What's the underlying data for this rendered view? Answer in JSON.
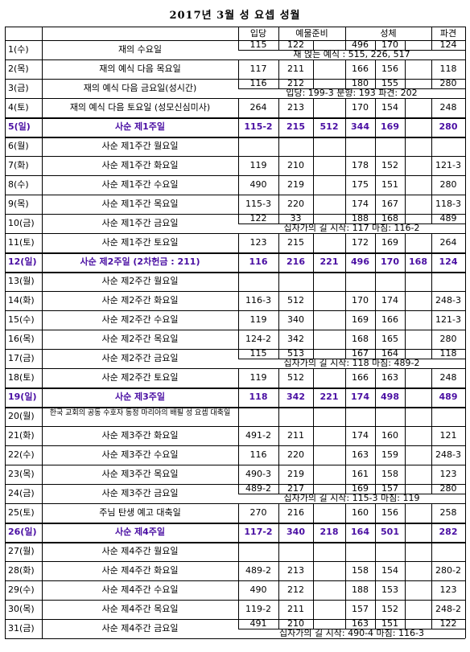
{
  "title": "2017년 3월 성 요셉 성월",
  "headers": {
    "opening": "입당",
    "offertory": "예물준비",
    "communion": "성체",
    "dismissal": "파견"
  },
  "rows": [
    {
      "date": "1(수)",
      "name": "재의 수요일",
      "vals": [
        "115",
        "122",
        "",
        "496",
        "170",
        "",
        "124"
      ],
      "note": "재 얹는 예식 : 515, 226, 517",
      "note_mode": "full"
    },
    {
      "date": "2(목)",
      "name": "재의 예식 다음 목요일",
      "vals": [
        "117",
        "211",
        "",
        "166",
        "156",
        "",
        "118"
      ]
    },
    {
      "date": "3(금)",
      "name": "재의 예식 다음 금요일(성시간)",
      "vals": [
        "116",
        "212",
        "",
        "180",
        "155",
        "",
        "280"
      ],
      "note": "입당: 199-3   분향: 193   파견: 202",
      "note_mode": "full"
    },
    {
      "date": "4(토)",
      "name": "재의 예식 다음 토요일 (성모신심미사)",
      "vals": [
        "264",
        "213",
        "",
        "170",
        "154",
        "",
        "248"
      ]
    },
    {
      "date": "5(일)",
      "name": "사순 제1주일",
      "vals": [
        "115-2",
        "215",
        "512",
        "344",
        "169",
        "",
        "280"
      ],
      "sunday": true
    },
    {
      "date": "6(월)",
      "name": "사순 제1주간 월요일",
      "vals": [
        "",
        "",
        "",
        "",
        "",
        "",
        ""
      ]
    },
    {
      "date": "7(화)",
      "name": "사순 제1주간 화요일",
      "vals": [
        "119",
        "210",
        "",
        "178",
        "152",
        "",
        "121-3"
      ]
    },
    {
      "date": "8(수)",
      "name": "사순 제1주간 수요일",
      "vals": [
        "490",
        "219",
        "",
        "175",
        "151",
        "",
        "280"
      ]
    },
    {
      "date": "9(목)",
      "name": "사순 제1주간 목요일",
      "vals": [
        "115-3",
        "220",
        "",
        "174",
        "167",
        "",
        "118-3"
      ]
    },
    {
      "date": "10(금)",
      "name": "사순 제1주간 금요일",
      "vals": [
        "122",
        "33",
        "",
        "188",
        "168",
        "",
        "489"
      ],
      "note": "십자가의 길 시작: 117        마침: 116-2",
      "note_mode": "inner"
    },
    {
      "date": "11(토)",
      "name": "사순 제1주간 토요일",
      "vals": [
        "123",
        "215",
        "",
        "172",
        "169",
        "",
        "264"
      ]
    },
    {
      "date": "12(일)",
      "name": "사순 제2주일 (2차헌금 : 211)",
      "vals": [
        "116",
        "216",
        "221",
        "496",
        "170",
        "168",
        "124"
      ],
      "sunday": true
    },
    {
      "date": "13(월)",
      "name": "사순 제2주간 월요일",
      "vals": [
        "",
        "",
        "",
        "",
        "",
        "",
        ""
      ]
    },
    {
      "date": "14(화)",
      "name": "사순 제2주간 화요일",
      "vals": [
        "116-3",
        "512",
        "",
        "170",
        "174",
        "",
        "248-3"
      ]
    },
    {
      "date": "15(수)",
      "name": "사순 제2주간 수요일",
      "vals": [
        "119",
        "340",
        "",
        "169",
        "166",
        "",
        "121-3"
      ]
    },
    {
      "date": "16(목)",
      "name": "사순 제2주간 목요일",
      "vals": [
        "124-2",
        "342",
        "",
        "168",
        "165",
        "",
        "280"
      ]
    },
    {
      "date": "17(금)",
      "name": "사순 제2주간 금요일",
      "vals": [
        "115",
        "513",
        "",
        "167",
        "164",
        "",
        "118"
      ],
      "note": "십자가의 길 시작: 118          마침: 489-2",
      "note_mode": "inner"
    },
    {
      "date": "18(토)",
      "name": "사순 제2주간 토요일",
      "vals": [
        "119",
        "512",
        "",
        "166",
        "163",
        "",
        "248"
      ]
    },
    {
      "date": "19(일)",
      "name": "사순 제3주일",
      "vals": [
        "118",
        "342",
        "221",
        "174",
        "498",
        "",
        "489"
      ],
      "sunday": true
    },
    {
      "date": "20(월)",
      "name": "한국 교회의 공동 수호자 동정 마리아의 배필 성 요셉 대축일",
      "vals": [
        "",
        "",
        "",
        "",
        "",
        "",
        ""
      ],
      "small": true
    },
    {
      "date": "21(화)",
      "name": "사순 제3주간 화요일",
      "vals": [
        "491-2",
        "211",
        "",
        "174",
        "160",
        "",
        "121"
      ]
    },
    {
      "date": "22(수)",
      "name": "사순 제3주간 수요일",
      "vals": [
        "116",
        "220",
        "",
        "163",
        "159",
        "",
        "248-3"
      ]
    },
    {
      "date": "23(목)",
      "name": "사순 제3주간 목요일",
      "vals": [
        "490-3",
        "219",
        "",
        "161",
        "158",
        "",
        "123"
      ]
    },
    {
      "date": "24(금)",
      "name": "사순 제3주간 금요일",
      "vals": [
        "489-2",
        "217",
        "",
        "169",
        "157",
        "",
        "280"
      ],
      "note": "십자가의 길 시작: 115-3         마침: 119",
      "note_mode": "inner"
    },
    {
      "date": "25(토)",
      "name": "주님 탄생 예고 대축일",
      "vals": [
        "270",
        "216",
        "",
        "160",
        "156",
        "",
        "258"
      ]
    },
    {
      "date": "26(일)",
      "name": "사순 제4주일",
      "vals": [
        "117-2",
        "340",
        "218",
        "164",
        "501",
        "",
        "282"
      ],
      "sunday": true
    },
    {
      "date": "27(월)",
      "name": "사순 제4주간 월요일",
      "vals": [
        "",
        "",
        "",
        "",
        "",
        "",
        ""
      ]
    },
    {
      "date": "28(화)",
      "name": "사순 제4주간 화요일",
      "vals": [
        "489-2",
        "213",
        "",
        "158",
        "154",
        "",
        "280-2"
      ]
    },
    {
      "date": "29(수)",
      "name": "사순 제4주간 수요일",
      "vals": [
        "490",
        "212",
        "",
        "188",
        "153",
        "",
        "123"
      ]
    },
    {
      "date": "30(목)",
      "name": "사순 제4주간 목요일",
      "vals": [
        "119-2",
        "211",
        "",
        "157",
        "152",
        "",
        "248-2"
      ]
    },
    {
      "date": "31(금)",
      "name": "사순 제4주간 금요일",
      "vals": [
        "491",
        "210",
        "",
        "163",
        "151",
        "",
        "122"
      ],
      "note": "십자가의 길 시작: 490-4         마침: 116-3",
      "note_mode": "inner"
    }
  ]
}
